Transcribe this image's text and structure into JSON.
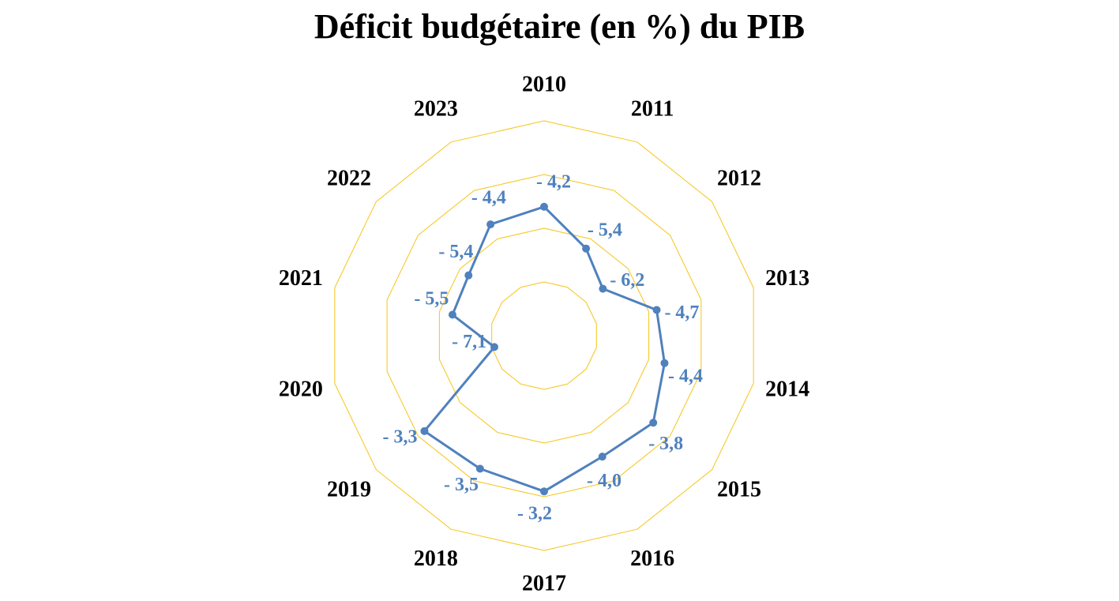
{
  "chart_data": {
    "type": "radar",
    "title": "Déficit budgétaire (en %) du PIB",
    "categories": [
      "2010",
      "2011",
      "2012",
      "2013",
      "2014",
      "2015",
      "2016",
      "2017",
      "2018",
      "2019",
      "2020",
      "2021",
      "2022",
      "2023"
    ],
    "series": [
      {
        "values": [
          -4.2,
          -5.4,
          -6.2,
          -4.7,
          -4.4,
          -3.8,
          -4.0,
          -3.2,
          -3.5,
          -3.3,
          -7.1,
          -5.5,
          -5.4,
          -4.4
        ],
        "labels": [
          "- 4,2",
          "- 5,4",
          "- 6,2",
          "- 4,7",
          "- 4,4",
          "- 3,8",
          "- 4,0",
          "- 3,2",
          "- 3,5",
          "- 3,3",
          "- 7,1",
          "- 5,5",
          "- 5,4",
          "- 4,4"
        ]
      }
    ],
    "rlim": [
      -9,
      -1
    ],
    "gridlines": true,
    "colors": {
      "series": "#4f81bd",
      "grid": "#f5c518"
    }
  }
}
